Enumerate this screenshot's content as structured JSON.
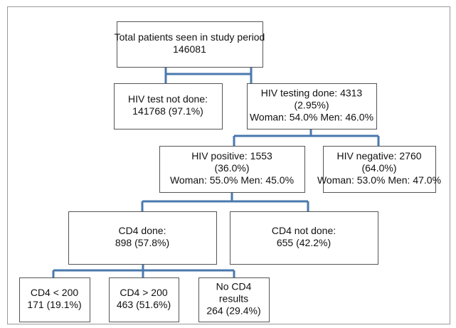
{
  "nodes": [
    {
      "lines": [
        "Total patients seen in study period",
        "146081"
      ]
    },
    {
      "lines": [
        "HIV test not done:",
        "141768 (97.1%)"
      ]
    },
    {
      "lines": [
        "HIV testing done: 4313",
        "(2.95%)",
        "Woman: 54.0% Men: 46.0%"
      ]
    },
    {
      "lines": [
        "HIV positive: 1553",
        "(36.0%)",
        "Woman: 55.0% Men: 45.0%"
      ]
    },
    {
      "lines": [
        "HIV negative: 2760",
        "(64.0%)",
        "Woman: 53.0% Men: 47.0%"
      ]
    },
    {
      "lines": [
        "CD4 done:",
        "898 (57.8%)"
      ]
    },
    {
      "lines": [
        "CD4 not done:",
        "655 (42.2%)"
      ]
    },
    {
      "lines": [
        "CD4 < 200",
        "171 (19.1%)"
      ]
    },
    {
      "lines": [
        "CD4 > 200",
        "463 (51.6%)"
      ]
    },
    {
      "lines": [
        "No CD4",
        "results",
        "264 (29.4%)"
      ]
    }
  ]
}
